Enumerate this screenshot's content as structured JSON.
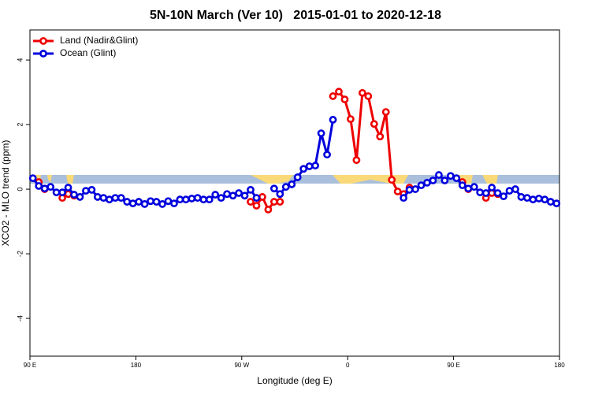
{
  "chart_data": {
    "type": "line",
    "title": "5N-10N March (Ver 10)   2015-01-01 to 2020-12-18",
    "x_label": "Longitude (deg E)",
    "y_label": "XCO2 - MLO trend (ppm)",
    "x": [
      92.5,
      97.5,
      102.5,
      107.5,
      112.5,
      117.5,
      122.5,
      127.5,
      132.5,
      137.5,
      142.5,
      147.5,
      152.5,
      157.5,
      162.5,
      167.5,
      172.5,
      177.5,
      182.5,
      187.5,
      192.5,
      197.5,
      202.5,
      207.5,
      212.5,
      217.5,
      222.5,
      227.5,
      232.5,
      237.5,
      242.5,
      247.5,
      252.5,
      257.5,
      262.5,
      267.5,
      272.5,
      277.5,
      282.5,
      287.5,
      292.5,
      297.5,
      302.5,
      307.5,
      312.5,
      317.5,
      322.5,
      327.5,
      332.5,
      337.5,
      342.5,
      347.5,
      352.5,
      357.5,
      362.5,
      367.5,
      372.5,
      377.5,
      382.5,
      387.5,
      392.5,
      397.5,
      402.5,
      407.5,
      412.5,
      417.5,
      422.5,
      427.5,
      432.5,
      437.5,
      442.5,
      447.5,
      452.5,
      457.5,
      462.5,
      467.5,
      472.5,
      477.5,
      482.5,
      487.5,
      492.5,
      497.5,
      502.5,
      507.5,
      512.5,
      517.5,
      522.5,
      527.5,
      532.5,
      537.5
    ],
    "series": [
      {
        "name": "Land (Nadir&Glint)",
        "color": "#ee0000",
        "values": [
          null,
          0.22,
          0,
          null,
          null,
          -0.27,
          -0.15,
          -0.2,
          null,
          null,
          null,
          null,
          null,
          null,
          null,
          null,
          null,
          null,
          null,
          null,
          null,
          null,
          null,
          null,
          null,
          null,
          null,
          null,
          null,
          null,
          null,
          null,
          null,
          null,
          null,
          null,
          null,
          -0.39,
          -0.51,
          -0.24,
          -0.63,
          -0.39,
          -0.39,
          null,
          null,
          null,
          null,
          null,
          null,
          null,
          null,
          2.88,
          3.02,
          2.78,
          2.17,
          0.9,
          2.98,
          2.88,
          2.02,
          1.63,
          2.39,
          0.29,
          -0.07,
          -0.15,
          0.05,
          null,
          null,
          null,
          null,
          null,
          null,
          null,
          null,
          0.22,
          0,
          null,
          null,
          -0.27,
          -0.12,
          -0.15,
          null,
          null,
          null,
          null,
          null,
          null,
          null,
          null,
          null,
          null
        ]
      },
      {
        "name": "Ocean (Glint)",
        "color": "#0000dd",
        "values": [
          0.34,
          0.1,
          0.02,
          0.07,
          -0.1,
          -0.1,
          0.05,
          -0.17,
          -0.24,
          -0.05,
          -0.02,
          -0.24,
          -0.27,
          -0.32,
          -0.27,
          -0.27,
          -0.39,
          -0.44,
          -0.39,
          -0.46,
          -0.37,
          -0.39,
          -0.46,
          -0.37,
          -0.44,
          -0.32,
          -0.32,
          -0.29,
          -0.27,
          -0.32,
          -0.32,
          -0.17,
          -0.27,
          -0.15,
          -0.2,
          -0.12,
          -0.2,
          -0.02,
          -0.27,
          null,
          null,
          0.02,
          -0.15,
          0.07,
          0.15,
          0.37,
          0.63,
          0.71,
          0.73,
          1.73,
          1.07,
          2.15,
          null,
          null,
          null,
          null,
          null,
          null,
          null,
          null,
          null,
          null,
          null,
          -0.27,
          -0.02,
          0,
          0.12,
          0.2,
          0.27,
          0.44,
          0.27,
          0.41,
          0.34,
          0.12,
          0.02,
          0.07,
          -0.1,
          -0.12,
          0.05,
          -0.12,
          -0.22,
          -0.05,
          0,
          -0.24,
          -0.27,
          -0.32,
          -0.29,
          -0.32,
          -0.39,
          -0.44
        ]
      }
    ],
    "xlim": [
      90,
      540
    ],
    "xticks": [
      {
        "value": 90,
        "label": "90 E"
      },
      180,
      {
        "value": 270,
        "label": "90 W"
      },
      {
        "value": 360,
        "label": "0"
      },
      {
        "value": 450,
        "label": "90 E"
      },
      {
        "value": 540,
        "label": "180"
      }
    ],
    "ylim": [
      -5.17,
      4.93
    ],
    "yticks": [
      -4,
      -2,
      0,
      2,
      4
    ],
    "legend": "top-left"
  }
}
